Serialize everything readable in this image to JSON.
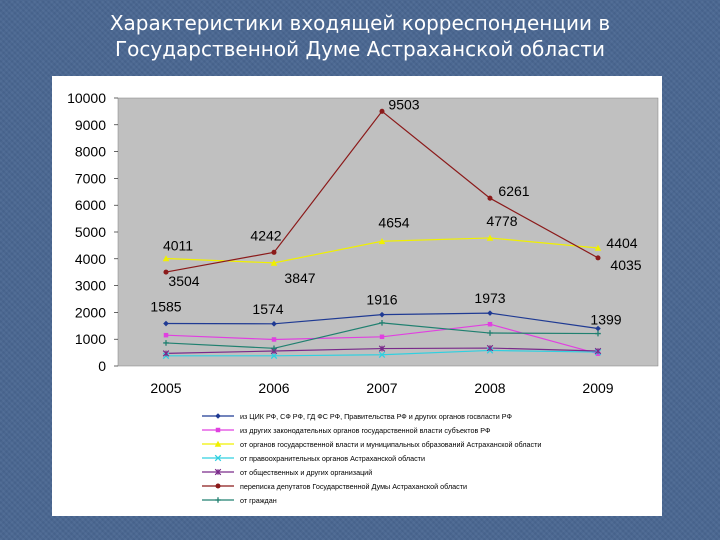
{
  "slide": {
    "title_line1": "Характеристики входящей корреспонденции в",
    "title_line2": "Государственной Думе Астраханской области"
  },
  "chart_data": {
    "type": "line",
    "title": "",
    "xlabel": "",
    "ylabel": "",
    "categories": [
      "2005",
      "2006",
      "2007",
      "2008",
      "2009"
    ],
    "ylim": [
      0,
      10000
    ],
    "yticks": [
      0,
      1000,
      2000,
      3000,
      4000,
      5000,
      6000,
      7000,
      8000,
      9000,
      10000
    ],
    "grid": false,
    "legend_position": "bottom",
    "plot_background": "#c0c0c0",
    "series": [
      {
        "name": "из ЦИК РФ, СФ РФ, ГД ФС РФ, Правительства РФ и других органов госвласти РФ",
        "color": "#1f3a93",
        "marker": "diamond",
        "values": [
          1585,
          1574,
          1916,
          1973,
          1399
        ],
        "labeled": true
      },
      {
        "name": "из других законодательных органов государственной власти субъектов РФ",
        "color": "#e040e0",
        "marker": "square",
        "values": [
          1150,
          990,
          1090,
          1560,
          460
        ],
        "labeled": false
      },
      {
        "name": "от органов государственной власти и муниципальных образований Астраханской области",
        "color": "#f0f000",
        "marker": "triangle",
        "values": [
          4011,
          3847,
          4654,
          4778,
          4404
        ],
        "labeled": true
      },
      {
        "name": "от правоохранительных органов Астраханской области",
        "color": "#30d0e0",
        "marker": "x",
        "values": [
          380,
          380,
          420,
          580,
          520
        ],
        "labeled": false
      },
      {
        "name": "от общественных и других организаций",
        "color": "#7a2a8a",
        "marker": "star",
        "values": [
          470,
          560,
          650,
          670,
          560
        ],
        "labeled": false
      },
      {
        "name": "переписка депутатов Государственной Думы Астраханской области",
        "color": "#8b1a1a",
        "marker": "circle",
        "values": [
          3504,
          4242,
          9503,
          6261,
          4035
        ],
        "labeled": true
      },
      {
        "name": "от граждан",
        "color": "#208070",
        "marker": "plus",
        "values": [
          860,
          660,
          1610,
          1230,
          1210
        ],
        "labeled": false
      }
    ]
  }
}
